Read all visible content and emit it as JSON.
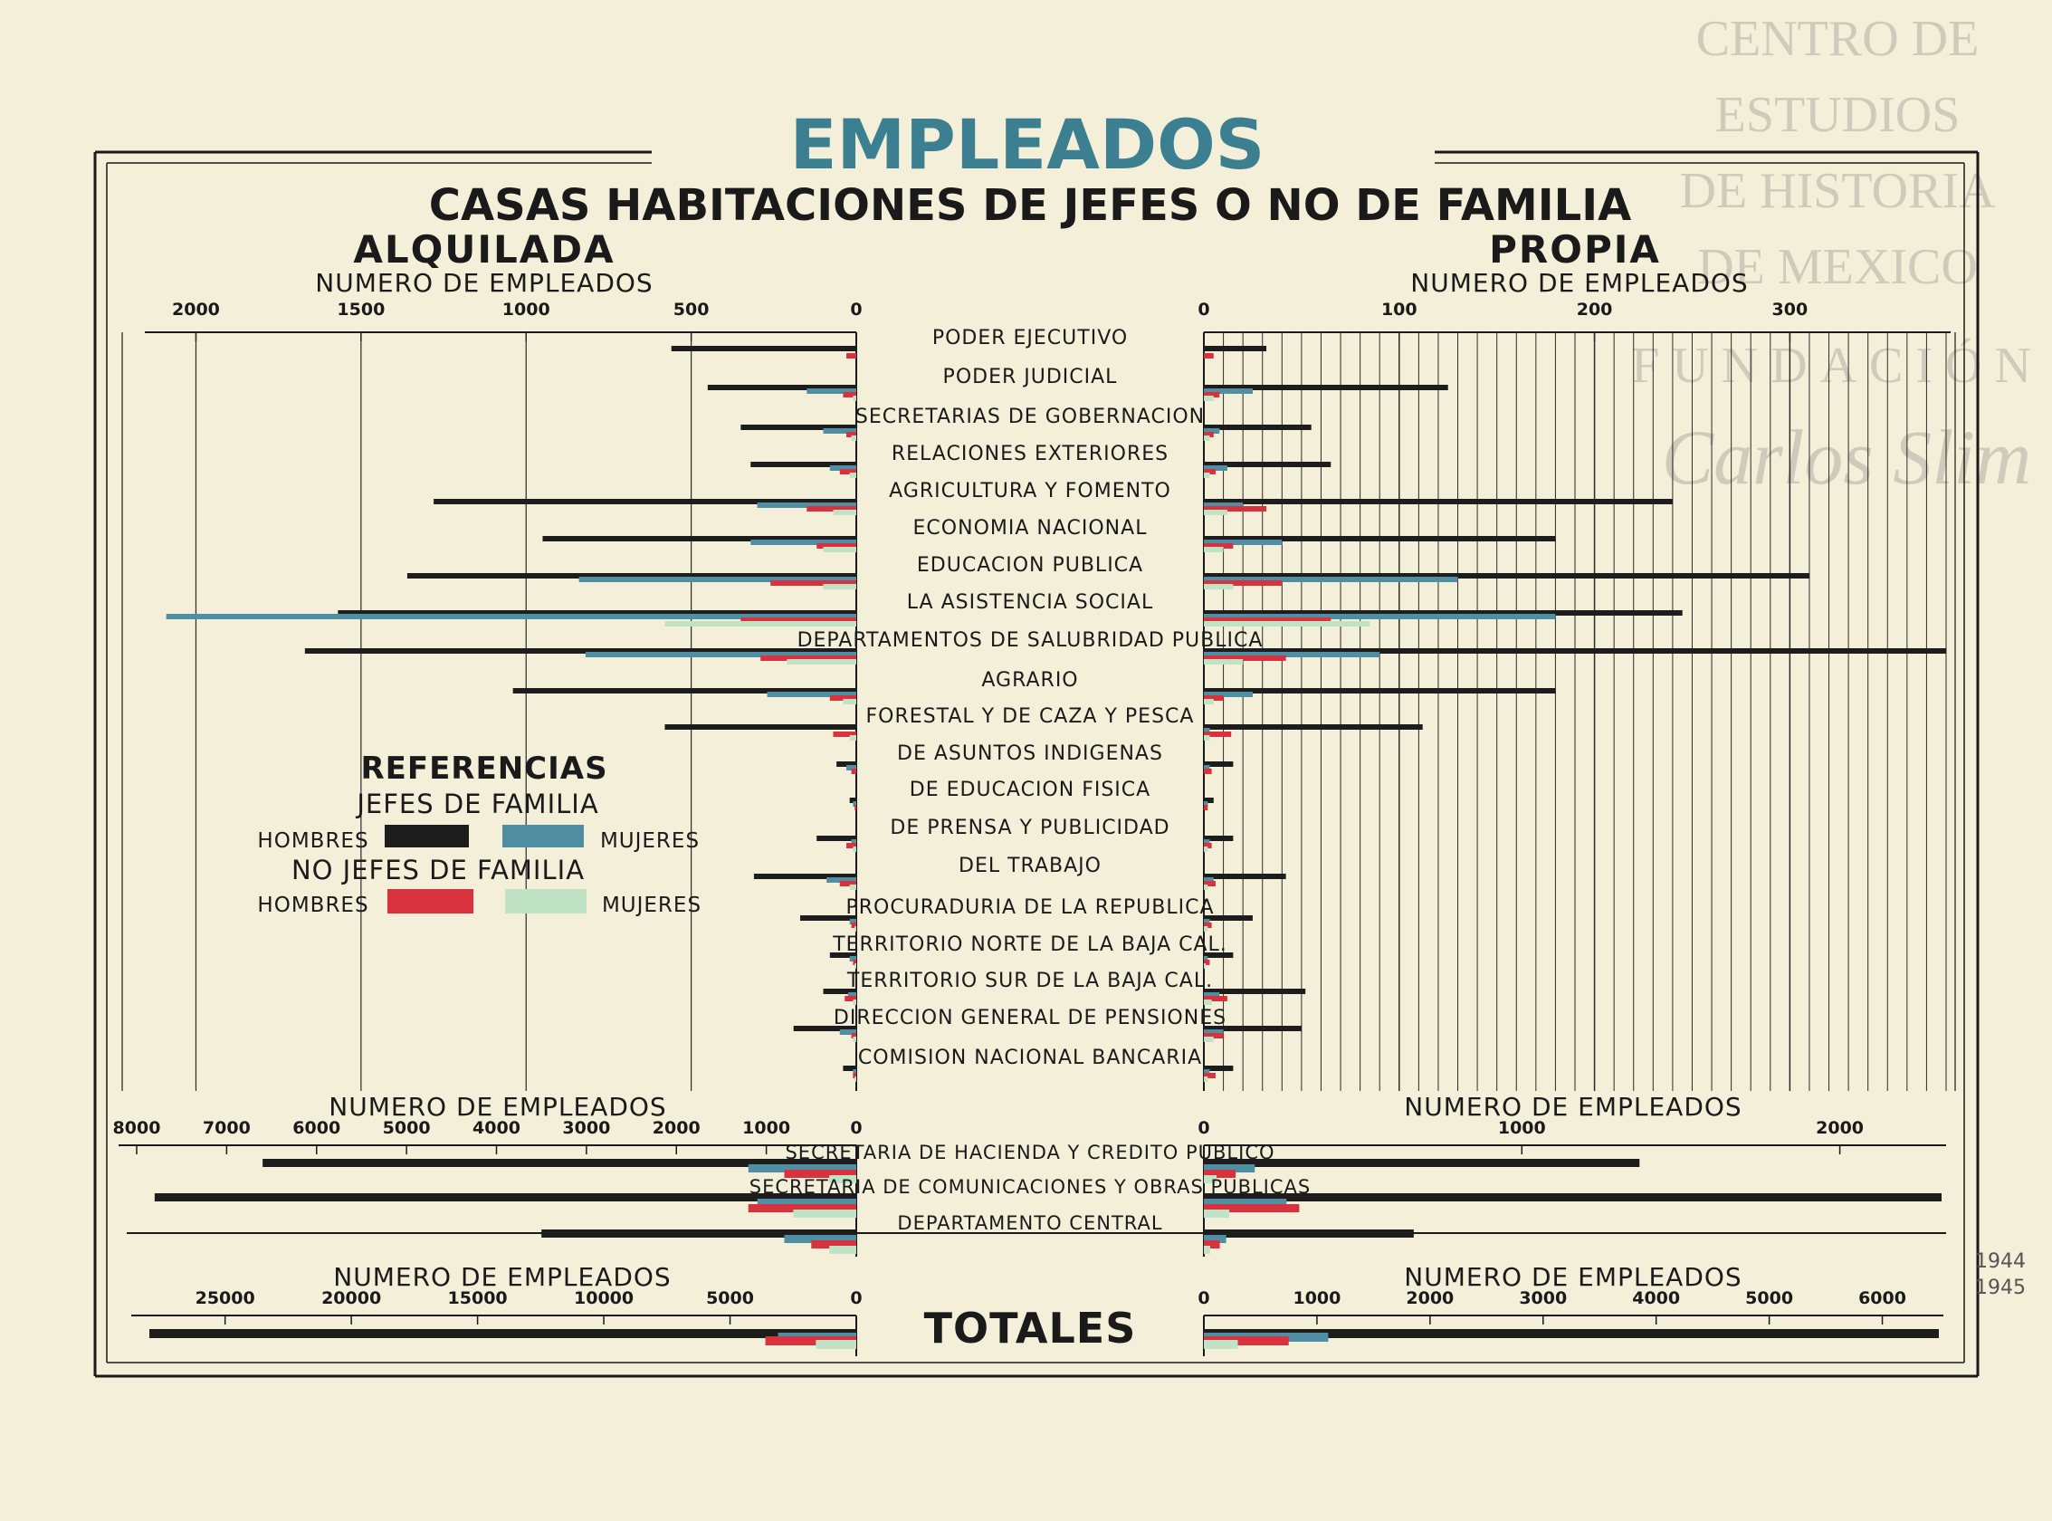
{
  "watermark": {
    "lines": [
      "CENTRO DE",
      "ESTUDIOS",
      "DE HISTORIA",
      "DE MEXICO",
      "FUNDACIÓN"
    ],
    "signature": "Carlos Slim"
  },
  "margin_note": [
    "1944",
    "1945"
  ],
  "colors": {
    "paper": "#f3efd9",
    "ink": "#1a1a1a",
    "hombres_jefes": "#1d1d1d",
    "mujeres_jefes": "#4f8ea3",
    "hombres_no_jefes": "#d8323f",
    "mujeres_no_jefes": "#bfe3c4",
    "title_blue": "#3b7f91",
    "grid": "#2a2a2a"
  },
  "chart_data": {
    "type": "bar",
    "title": "EMPLEADOS",
    "subtitle": "CASAS HABITACIONES DE JEFES O NO DE FAMILIA",
    "left_heading": "ALQUILADA",
    "right_heading": "PROPIA",
    "legend": {
      "title": "REFERENCIAS",
      "group1": "JEFES DE FAMILIA",
      "group2": "NO JEFES DE FAMILIA",
      "hombres": "HOMBRES",
      "mujeres": "MUJERES"
    },
    "series_names": [
      "HOMBRES JEFES DE FAMILIA",
      "MUJERES JEFES DE FAMILIA",
      "HOMBRES NO JEFES DE FAMILIA",
      "MUJERES NO JEFES DE FAMILIA"
    ],
    "totals_label": "TOTALES",
    "panels": [
      {
        "axis_label": "NUMERO DE EMPLEADOS",
        "left_ticks": [
          "2000",
          "1500",
          "1000",
          "500",
          "0"
        ],
        "left_tick_values": [
          2000,
          1500,
          1000,
          500,
          0
        ],
        "left_max": 2100,
        "right_ticks": [
          "0",
          "100",
          "200",
          "300"
        ],
        "right_tick_values": [
          0,
          100,
          200,
          300
        ],
        "right_max": 380,
        "right_grid_step": 10,
        "categories": [
          {
            "label": "PODER EJECUTIVO",
            "alquilada": [
              560,
              0,
              30,
              0
            ],
            "propia": [
              32,
              0,
              5,
              0
            ]
          },
          {
            "label": "PODER JUDICIAL",
            "alquilada": [
              450,
              150,
              40,
              10
            ],
            "propia": [
              125,
              25,
              8,
              5
            ]
          },
          {
            "label": "SECRETARIAS DE GOBERNACION",
            "alquilada": [
              350,
              100,
              30,
              15
            ],
            "propia": [
              55,
              8,
              5,
              3
            ]
          },
          {
            "label": "RELACIONES EXTERIORES",
            "alquilada": [
              320,
              80,
              50,
              20
            ],
            "propia": [
              65,
              12,
              6,
              3
            ]
          },
          {
            "label": "AGRICULTURA Y FOMENTO",
            "alquilada": [
              1280,
              300,
              150,
              70
            ],
            "propia": [
              240,
              20,
              32,
              12
            ]
          },
          {
            "label": "ECONOMIA NACIONAL",
            "alquilada": [
              950,
              320,
              120,
              100
            ],
            "propia": [
              180,
              40,
              15,
              10
            ]
          },
          {
            "label": "EDUCACION PUBLICA",
            "alquilada": [
              1360,
              840,
              260,
              100
            ],
            "propia": [
              310,
              130,
              40,
              15
            ]
          },
          {
            "label": "LA ASISTENCIA SOCIAL",
            "alquilada": [
              1570,
              2090,
              350,
              580
            ],
            "propia": [
              245,
              180,
              65,
              85
            ]
          },
          {
            "label": "DEPARTAMENTOS DE SALUBRIDAD PUBLICA",
            "alquilada": [
              1670,
              820,
              290,
              210
            ],
            "propia": [
              380,
              90,
              42,
              20
            ]
          },
          {
            "label": "AGRARIO",
            "alquilada": [
              1040,
              270,
              80,
              40
            ],
            "propia": [
              180,
              25,
              10,
              5
            ]
          },
          {
            "label": "FORESTAL Y DE CAZA Y PESCA",
            "alquilada": [
              580,
              0,
              70,
              20
            ],
            "propia": [
              112,
              3,
              14,
              3
            ]
          },
          {
            "label": "DE ASUNTOS INDIGENAS",
            "alquilada": [
              60,
              30,
              15,
              0
            ],
            "propia": [
              15,
              3,
              4,
              0
            ]
          },
          {
            "label": "DE EDUCACION FISICA",
            "alquilada": [
              20,
              10,
              5,
              0
            ],
            "propia": [
              5,
              2,
              2,
              0
            ]
          },
          {
            "label": "DE PRENSA Y PUBLICIDAD",
            "alquilada": [
              120,
              15,
              30,
              10
            ],
            "propia": [
              15,
              3,
              4,
              2
            ]
          },
          {
            "label": "DEL TRABAJO",
            "alquilada": [
              310,
              90,
              50,
              20
            ],
            "propia": [
              42,
              5,
              6,
              2
            ]
          },
          {
            "label": "PROCURADURIA DE LA REPUBLICA",
            "alquilada": [
              170,
              20,
              15,
              5
            ],
            "propia": [
              25,
              3,
              4,
              2
            ]
          },
          {
            "label": "TERRITORIO NORTE DE LA BAJA CAL.",
            "alquilada": [
              80,
              20,
              10,
              5
            ],
            "propia": [
              15,
              2,
              3,
              1
            ]
          },
          {
            "label": "TERRITORIO SUR DE LA BAJA CAL.",
            "alquilada": [
              100,
              25,
              35,
              10
            ],
            "propia": [
              52,
              8,
              12,
              4
            ]
          },
          {
            "label": "DIRECCION GENERAL DE PENSIONES",
            "alquilada": [
              190,
              50,
              15,
              10
            ],
            "propia": [
              50,
              10,
              10,
              5
            ]
          },
          {
            "label": "COMISION NACIONAL BANCARIA",
            "alquilada": [
              40,
              10,
              10,
              5
            ],
            "propia": [
              15,
              3,
              6,
              2
            ]
          }
        ]
      },
      {
        "axis_label": "NUMERO DE EMPLEADOS",
        "left_ticks": [
          "8000",
          "7000",
          "6000",
          "5000",
          "4000",
          "3000",
          "2000",
          "1000",
          "0"
        ],
        "left_tick_values": [
          8000,
          7000,
          6000,
          5000,
          4000,
          3000,
          2000,
          1000,
          0
        ],
        "left_max": 8000,
        "right_ticks": [
          "0",
          "1000",
          "2000"
        ],
        "right_tick_values": [
          0,
          1000,
          2000
        ],
        "right_max": 2320,
        "right_grid_step": 0,
        "categories": [
          {
            "label": "SECRETARIA DE HACIENDA Y CREDITO PUBLICO",
            "alquilada": [
              6600,
              1200,
              800,
              300
            ],
            "propia": [
              1370,
              160,
              100,
              40
            ]
          },
          {
            "label": "SECRETARIA DE COMUNICACIONES Y OBRAS PUBLICAS",
            "alquilada": [
              7800,
              1100,
              1200,
              700
            ],
            "propia": [
              2320,
              260,
              300,
              80
            ]
          },
          {
            "label": "DEPARTAMENTO CENTRAL",
            "alquilada": [
              3500,
              800,
              500,
              300
            ],
            "propia": [
              660,
              70,
              50,
              20
            ]
          }
        ]
      },
      {
        "axis_label": "NUMERO DE EMPLEADOS",
        "left_ticks": [
          "25000",
          "20000",
          "15000",
          "10000",
          "5000",
          "0"
        ],
        "left_tick_values": [
          25000,
          20000,
          15000,
          10000,
          5000,
          0
        ],
        "left_max": 28000,
        "right_ticks": [
          "0",
          "1000",
          "2000",
          "3000",
          "4000",
          "5000",
          "6000"
        ],
        "right_tick_values": [
          0,
          1000,
          2000,
          3000,
          4000,
          5000,
          6000
        ],
        "right_max": 6500,
        "right_grid_step": 0,
        "categories": [
          {
            "label": "TOTALES",
            "alquilada": [
              28000,
              3100,
              3600,
              1600
            ],
            "propia": [
              6500,
              1100,
              750,
              300
            ]
          }
        ]
      }
    ]
  }
}
